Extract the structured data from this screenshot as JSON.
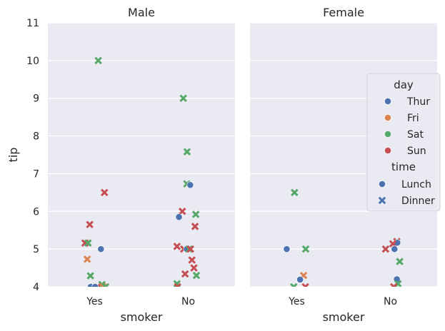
{
  "chart_data": {
    "type": "scatter",
    "subtype": "categorical-strip",
    "facets": [
      "Male",
      "Female"
    ],
    "x_categories": [
      "Yes",
      "No"
    ],
    "xlabel": "smoker",
    "ylabel": "tip",
    "ylim": [
      4,
      11
    ],
    "yticks": [
      "4",
      "5",
      "6",
      "7",
      "8",
      "9",
      "10",
      "11"
    ],
    "grid": true,
    "legend": {
      "placement": "right",
      "hue_title": "day",
      "hue": [
        {
          "name": "Thur",
          "color": "#4c72b0"
        },
        {
          "name": "Fri",
          "color": "#dd8452"
        },
        {
          "name": "Sat",
          "color": "#55a868"
        },
        {
          "name": "Sun",
          "color": "#c44e52"
        }
      ],
      "style_title": "time",
      "style": [
        {
          "name": "Lunch",
          "marker": "circle"
        },
        {
          "name": "Dinner",
          "marker": "x"
        }
      ]
    },
    "points": [
      {
        "facet": "Male",
        "smoker": "Yes",
        "tip": 10.0,
        "day": "Sat",
        "time": "Dinner"
      },
      {
        "facet": "Male",
        "smoker": "Yes",
        "tip": 6.5,
        "day": "Sun",
        "time": "Dinner"
      },
      {
        "facet": "Male",
        "smoker": "Yes",
        "tip": 5.65,
        "day": "Sun",
        "time": "Dinner"
      },
      {
        "facet": "Male",
        "smoker": "Yes",
        "tip": 5.16,
        "day": "Sun",
        "time": "Dinner"
      },
      {
        "facet": "Male",
        "smoker": "Yes",
        "tip": 5.16,
        "day": "Sat",
        "time": "Dinner"
      },
      {
        "facet": "Male",
        "smoker": "Yes",
        "tip": 5.0,
        "day": "Thur",
        "time": "Lunch"
      },
      {
        "facet": "Male",
        "smoker": "Yes",
        "tip": 4.73,
        "day": "Fri",
        "time": "Dinner"
      },
      {
        "facet": "Male",
        "smoker": "Yes",
        "tip": 4.29,
        "day": "Sat",
        "time": "Dinner"
      },
      {
        "facet": "Male",
        "smoker": "Yes",
        "tip": 4.06,
        "day": "Sat",
        "time": "Dinner"
      },
      {
        "facet": "Male",
        "smoker": "Yes",
        "tip": 4.0,
        "day": "Thur",
        "time": "Lunch"
      },
      {
        "facet": "Male",
        "smoker": "Yes",
        "tip": 4.0,
        "day": "Sun",
        "time": "Dinner"
      },
      {
        "facet": "Male",
        "smoker": "Yes",
        "tip": 4.0,
        "day": "Fri",
        "time": "Dinner"
      },
      {
        "facet": "Male",
        "smoker": "Yes",
        "tip": 4.0,
        "day": "Sat",
        "time": "Dinner"
      },
      {
        "facet": "Male",
        "smoker": "Yes",
        "tip": 4.0,
        "day": "Thur",
        "time": "Lunch"
      },
      {
        "facet": "Male",
        "smoker": "No",
        "tip": 9.0,
        "day": "Sat",
        "time": "Dinner"
      },
      {
        "facet": "Male",
        "smoker": "No",
        "tip": 7.58,
        "day": "Sat",
        "time": "Dinner"
      },
      {
        "facet": "Male",
        "smoker": "No",
        "tip": 6.73,
        "day": "Sat",
        "time": "Dinner"
      },
      {
        "facet": "Male",
        "smoker": "No",
        "tip": 6.7,
        "day": "Thur",
        "time": "Lunch"
      },
      {
        "facet": "Male",
        "smoker": "No",
        "tip": 6.0,
        "day": "Sun",
        "time": "Dinner"
      },
      {
        "facet": "Male",
        "smoker": "No",
        "tip": 5.92,
        "day": "Sat",
        "time": "Dinner"
      },
      {
        "facet": "Male",
        "smoker": "No",
        "tip": 5.85,
        "day": "Thur",
        "time": "Lunch"
      },
      {
        "facet": "Male",
        "smoker": "No",
        "tip": 5.6,
        "day": "Sun",
        "time": "Dinner"
      },
      {
        "facet": "Male",
        "smoker": "No",
        "tip": 5.07,
        "day": "Sun",
        "time": "Dinner"
      },
      {
        "facet": "Male",
        "smoker": "No",
        "tip": 5.0,
        "day": "Sun",
        "time": "Dinner"
      },
      {
        "facet": "Male",
        "smoker": "No",
        "tip": 5.0,
        "day": "Thur",
        "time": "Lunch"
      },
      {
        "facet": "Male",
        "smoker": "No",
        "tip": 5.0,
        "day": "Sat",
        "time": "Dinner"
      },
      {
        "facet": "Male",
        "smoker": "No",
        "tip": 5.0,
        "day": "Sun",
        "time": "Dinner"
      },
      {
        "facet": "Male",
        "smoker": "No",
        "tip": 4.71,
        "day": "Sun",
        "time": "Dinner"
      },
      {
        "facet": "Male",
        "smoker": "No",
        "tip": 4.5,
        "day": "Sun",
        "time": "Dinner"
      },
      {
        "facet": "Male",
        "smoker": "No",
        "tip": 4.34,
        "day": "Sun",
        "time": "Dinner"
      },
      {
        "facet": "Male",
        "smoker": "No",
        "tip": 4.3,
        "day": "Sat",
        "time": "Dinner"
      },
      {
        "facet": "Male",
        "smoker": "No",
        "tip": 4.08,
        "day": "Sat",
        "time": "Dinner"
      },
      {
        "facet": "Male",
        "smoker": "No",
        "tip": 4.0,
        "day": "Sun",
        "time": "Dinner"
      },
      {
        "facet": "Female",
        "smoker": "Yes",
        "tip": 6.5,
        "day": "Sat",
        "time": "Dinner"
      },
      {
        "facet": "Female",
        "smoker": "Yes",
        "tip": 5.0,
        "day": "Sat",
        "time": "Dinner"
      },
      {
        "facet": "Female",
        "smoker": "Yes",
        "tip": 5.0,
        "day": "Thur",
        "time": "Lunch"
      },
      {
        "facet": "Female",
        "smoker": "Yes",
        "tip": 4.3,
        "day": "Fri",
        "time": "Dinner"
      },
      {
        "facet": "Female",
        "smoker": "Yes",
        "tip": 4.19,
        "day": "Thur",
        "time": "Lunch"
      },
      {
        "facet": "Female",
        "smoker": "Yes",
        "tip": 4.0,
        "day": "Sun",
        "time": "Dinner"
      },
      {
        "facet": "Female",
        "smoker": "Yes",
        "tip": 4.0,
        "day": "Sat",
        "time": "Dinner"
      },
      {
        "facet": "Female",
        "smoker": "No",
        "tip": 5.2,
        "day": "Sun",
        "time": "Dinner"
      },
      {
        "facet": "Female",
        "smoker": "No",
        "tip": 5.17,
        "day": "Thur",
        "time": "Lunch"
      },
      {
        "facet": "Female",
        "smoker": "No",
        "tip": 5.14,
        "day": "Sun",
        "time": "Dinner"
      },
      {
        "facet": "Female",
        "smoker": "No",
        "tip": 5.0,
        "day": "Thur",
        "time": "Lunch"
      },
      {
        "facet": "Female",
        "smoker": "No",
        "tip": 5.0,
        "day": "Sun",
        "time": "Dinner"
      },
      {
        "facet": "Female",
        "smoker": "No",
        "tip": 4.67,
        "day": "Sat",
        "time": "Dinner"
      },
      {
        "facet": "Female",
        "smoker": "No",
        "tip": 4.2,
        "day": "Thur",
        "time": "Lunch"
      },
      {
        "facet": "Female",
        "smoker": "No",
        "tip": 4.08,
        "day": "Sat",
        "time": "Dinner"
      },
      {
        "facet": "Female",
        "smoker": "No",
        "tip": 4.0,
        "day": "Sun",
        "time": "Dinner"
      }
    ]
  }
}
